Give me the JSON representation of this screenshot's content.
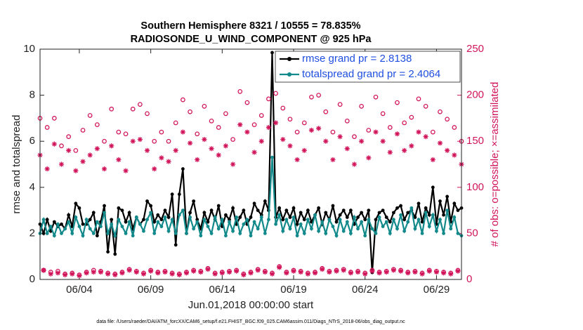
{
  "chart_data": {
    "type": "line",
    "title": "Southern Hemisphere 8321 / 10555 = 78.835%",
    "subtitle": "RADIOSONDE_U_WIND_COMPONENT @ 925 hPa",
    "x_label": "Jun.01,2018 00:00:00 start",
    "y_label": "rmse and totalspread",
    "y2_label": "# of obs: o=possible; ×=assimilated",
    "footnote": "data file: /Users/raeder/DAI/ATM_forcXX/CAM6_setup/f.e21.FHIST_BGC.f09_025.CAM6assim.011/Diags_NTrS_2018-06/obs_diag_output.nc",
    "legend_position": "top-right",
    "legend_text_color": "#1f4fe0",
    "xlim": [
      1.25,
      30.75
    ],
    "xticks": [
      {
        "value": 4,
        "label": "06/04"
      },
      {
        "value": 9,
        "label": "06/09"
      },
      {
        "value": 14,
        "label": "06/14"
      },
      {
        "value": 19,
        "label": "06/19"
      },
      {
        "value": 24,
        "label": "06/24"
      },
      {
        "value": 29,
        "label": "06/29"
      }
    ],
    "ylim": [
      0,
      10
    ],
    "yticks": [
      0,
      2,
      4,
      6,
      8,
      10
    ],
    "y2lim": [
      0,
      250
    ],
    "y2ticks": [
      0,
      50,
      100,
      150,
      200,
      250
    ],
    "x": [
      1.25,
      1.5,
      1.75,
      2,
      2.25,
      2.5,
      2.75,
      3,
      3.25,
      3.5,
      3.75,
      4,
      4.25,
      4.5,
      4.75,
      5,
      5.25,
      5.5,
      5.75,
      6,
      6.25,
      6.5,
      6.75,
      7,
      7.25,
      7.5,
      7.75,
      8,
      8.25,
      8.5,
      8.75,
      9,
      9.25,
      9.5,
      9.75,
      10,
      10.25,
      10.5,
      10.75,
      11,
      11.25,
      11.5,
      11.75,
      12,
      12.25,
      12.5,
      12.75,
      13,
      13.25,
      13.5,
      13.75,
      14,
      14.25,
      14.5,
      14.75,
      15,
      15.25,
      15.5,
      15.75,
      16,
      16.25,
      16.5,
      16.75,
      17,
      17.25,
      17.5,
      17.75,
      18,
      18.25,
      18.5,
      18.75,
      19,
      19.25,
      19.5,
      19.75,
      20,
      20.25,
      20.5,
      20.75,
      21,
      21.25,
      21.5,
      21.75,
      22,
      22.25,
      22.5,
      22.75,
      23,
      23.25,
      23.5,
      23.75,
      24,
      24.25,
      24.5,
      24.75,
      25,
      25.25,
      25.5,
      25.75,
      26,
      26.25,
      26.5,
      26.75,
      27,
      27.25,
      27.5,
      27.75,
      28,
      28.25,
      28.5,
      28.75,
      29,
      29.25,
      29.5,
      29.75,
      30,
      30.25,
      30.5,
      30.75
    ],
    "series": [
      {
        "name": "rmse grand pr = 2.8138",
        "color": "#000000",
        "marker": "dot",
        "values": [
          2.4,
          2.0,
          2.6,
          2.1,
          2.5,
          2.3,
          2.4,
          2.2,
          2.8,
          2.3,
          3.3,
          3.1,
          2.4,
          2.4,
          2.6,
          2.9,
          1.9,
          2.5,
          3.2,
          1.2,
          2.6,
          1.1,
          3.1,
          3.0,
          2.5,
          2.9,
          2.2,
          2.7,
          2.4,
          2.6,
          3.4,
          3.2,
          2.5,
          2.8,
          2.6,
          3.0,
          2.7,
          3.7,
          1.5,
          3.7,
          4.8,
          2.0,
          2.9,
          3.4,
          2.6,
          2.2,
          2.9,
          2.5,
          3.0,
          2.6,
          3.2,
          2.3,
          2.8,
          2.6,
          3.1,
          2.4,
          2.7,
          3.0,
          2.4,
          2.7,
          3.3,
          3.0,
          2.8,
          3.4,
          3.0,
          9.85,
          2.7,
          3.1,
          2.6,
          3.0,
          2.7,
          3.1,
          2.4,
          2.9,
          2.6,
          3.0,
          2.5,
          2.8,
          3.1,
          2.4,
          2.9,
          2.6,
          3.2,
          2.5,
          2.8,
          3.0,
          2.7,
          3.0,
          2.4,
          2.7,
          2.9,
          2.6,
          3.0,
          0.3,
          2.6,
          2.9,
          3.0,
          2.7,
          2.5,
          2.9,
          3.1,
          3.2,
          2.6,
          2.9,
          3.0,
          2.7,
          3.3,
          2.5,
          3.1,
          2.8,
          4.0,
          2.4,
          3.4,
          2.8,
          3.6,
          2.5,
          3.3,
          3.0,
          3.1
        ]
      },
      {
        "name": "totalspread grand pr = 2.4064",
        "color": "#12898a",
        "marker": "dot",
        "values": [
          2.0,
          2.6,
          2.0,
          2.3,
          1.9,
          2.4,
          2.0,
          2.2,
          2.5,
          2.0,
          2.7,
          2.3,
          1.9,
          2.6,
          2.2,
          2.0,
          2.5,
          2.3,
          2.9,
          2.0,
          2.4,
          1.9,
          2.6,
          2.3,
          2.0,
          2.5,
          1.9,
          2.7,
          2.4,
          2.1,
          2.6,
          2.9,
          2.0,
          2.5,
          2.3,
          2.7,
          2.1,
          2.6,
          2.0,
          2.8,
          3.0,
          2.0,
          2.7,
          2.2,
          2.5,
          1.9,
          2.6,
          2.3,
          2.0,
          2.7,
          2.2,
          2.6,
          1.9,
          2.5,
          2.1,
          2.7,
          2.0,
          2.4,
          2.6,
          1.9,
          2.5,
          2.2,
          2.7,
          2.0,
          2.6,
          5.3,
          2.4,
          2.8,
          2.1,
          2.6,
          2.2,
          2.7,
          1.9,
          2.4,
          2.0,
          2.6,
          2.2,
          2.8,
          2.1,
          2.5,
          2.0,
          2.6,
          2.3,
          1.9,
          2.6,
          2.1,
          2.5,
          2.0,
          2.7,
          2.2,
          2.5,
          1.9,
          2.6,
          2.2,
          2.0,
          2.7,
          2.3,
          2.5,
          2.0,
          2.6,
          2.2,
          2.8,
          2.1,
          2.5,
          3.1,
          2.2,
          2.6,
          2.0,
          2.9,
          2.3,
          2.8,
          2.1,
          2.6,
          2.0,
          3.0,
          2.2,
          2.7,
          2.0,
          1.9
        ]
      },
      {
        "color": "#d1145a",
        "marker": "circle",
        "axis": "y2",
        "values": [
          175,
          10,
          165,
          8,
          175,
          9,
          145,
          6,
          155,
          7,
          140,
          5,
          162,
          8,
          178,
          10,
          168,
          9,
          150,
          7,
          185,
          6,
          160,
          8,
          158,
          11,
          185,
          9,
          190,
          7,
          180,
          10,
          150,
          8,
          160,
          9,
          150,
          7,
          170,
          6,
          195,
          8,
          182,
          10,
          158,
          9,
          188,
          12,
          172,
          7,
          165,
          8,
          180,
          9,
          152,
          10,
          204,
          6,
          192,
          8,
          168,
          11,
          178,
          9,
          196,
          7,
          202,
          14,
          186,
          8,
          174,
          10,
          160,
          9,
          170,
          7,
          198,
          8,
          200,
          12,
          182,
          9,
          160,
          10,
          190,
          11,
          172,
          8,
          155,
          9,
          188,
          7,
          162,
          10,
          198,
          8,
          180,
          9,
          165,
          11,
          192,
          10,
          170,
          8,
          176,
          9,
          196,
          7,
          188,
          10,
          160,
          9,
          182,
          8,
          174,
          7,
          165,
          10,
          150
        ]
      },
      {
        "color": "#d1145a",
        "marker": "asterisk",
        "axis": "y2",
        "values": [
          135,
          10,
          120,
          6,
          147,
          7,
          125,
          5,
          140,
          6,
          118,
          4,
          128,
          7,
          135,
          8,
          142,
          8,
          120,
          6,
          145,
          5,
          130,
          7,
          118,
          10,
          150,
          8,
          152,
          6,
          140,
          9,
          120,
          7,
          132,
          8,
          128,
          6,
          140,
          5,
          160,
          7,
          148,
          9,
          130,
          8,
          152,
          11,
          142,
          6,
          135,
          7,
          145,
          8,
          125,
          9,
          168,
          5,
          160,
          7,
          138,
          10,
          150,
          8,
          165,
          6,
          170,
          13,
          152,
          7,
          145,
          9,
          130,
          8,
          140,
          6,
          162,
          7,
          164,
          11,
          150,
          8,
          130,
          9,
          155,
          10,
          142,
          7,
          125,
          8,
          150,
          6,
          132,
          9,
          160,
          7,
          150,
          8,
          138,
          10,
          158,
          9,
          140,
          7,
          145,
          8,
          160,
          6,
          155,
          9,
          130,
          8,
          148,
          7,
          140,
          6,
          135,
          9,
          125
        ]
      }
    ]
  }
}
